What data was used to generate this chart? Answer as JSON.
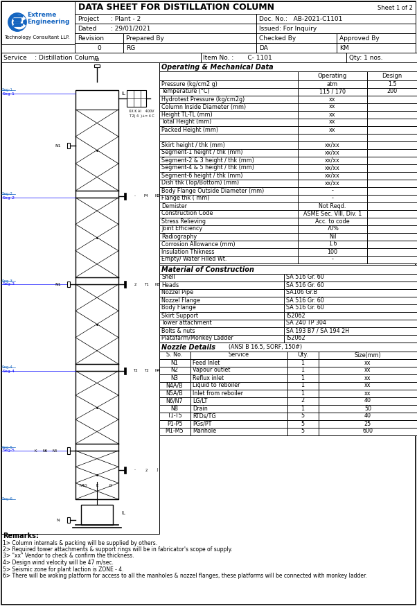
{
  "title": "DATA SHEET FOR DISTILLATION COLUMN",
  "sheet": "Sheet 1 of 2",
  "header": {
    "project": "Plant - 2",
    "doc_no": "AB-2021-C1101",
    "dated": "29/01/2021",
    "issued": "Issued: For Inquiry",
    "revision": "0",
    "prepared_by": "RG",
    "checked_by": "DA",
    "approved_by": "KM"
  },
  "service_line": {
    "service": "Distillation Column",
    "item_no": "C- 1101",
    "qty": "Qty: 1 nos."
  },
  "operating_data_title": "Operating & Mechanical Data",
  "op_col_headers": [
    "",
    "Operating",
    "Design"
  ],
  "op_rows": [
    [
      "Pressure (kg/cm2 g)",
      "atm",
      "1.5"
    ],
    [
      "Temperature (°C)",
      "115 / 170",
      "200"
    ],
    [
      "Hydrotest Pressure (kg/cm2g)",
      "xx",
      ""
    ],
    [
      "Column Inside Diameter (mm)",
      "xx",
      ""
    ],
    [
      "Height TL-TL (mm)",
      "xx",
      ""
    ],
    [
      "Total Height (mm)",
      "xx",
      ""
    ],
    [
      "Packed Height (mm)",
      "xx",
      ""
    ],
    [
      "",
      "",
      ""
    ],
    [
      "Skirt height / thk (mm)",
      "xx/xx",
      ""
    ],
    [
      "Segment-1 height / thk (mm)",
      "xx/xx",
      ""
    ],
    [
      "Segment-2 & 3 height / thk (mm)",
      "xx/xx",
      ""
    ],
    [
      "Segment-4 & 5 height / thk (mm)",
      "xx/xx",
      ""
    ],
    [
      "Segment-6 height / thk (mm)",
      "xx/xx",
      ""
    ],
    [
      "Dish thk (Top/Bottom) (mm)",
      "xx/xx",
      ""
    ],
    [
      "Body Flange Outside Diameter (mm)",
      "-",
      ""
    ],
    [
      "Flange thk ( mm)",
      "-",
      ""
    ],
    [
      "Demister",
      "Not Reqd.",
      ""
    ],
    [
      "Construction Code",
      "ASME Sec. VIII, Div. 1",
      ""
    ],
    [
      "Stress Relieving",
      "Acc. to code",
      ""
    ],
    [
      "Joint Efficiency",
      "70%",
      ""
    ],
    [
      "Radiography",
      "Nil",
      ""
    ],
    [
      "Corrosion Allowance (mm)",
      "1.6",
      ""
    ],
    [
      "Insulation Thikness",
      "100",
      ""
    ],
    [
      "Empty/ Water Filled Wt.",
      "-",
      ""
    ]
  ],
  "mat_title": "Material of Construction",
  "mat_rows": [
    [
      "Shell",
      "SA 516 Gr. 60"
    ],
    [
      "Heads",
      "SA 516 Gr. 60"
    ],
    [
      "Nozzel Pipe",
      "SA106 Gr.B"
    ],
    [
      "Nozzel Flange",
      "SA 516 Gr. 60"
    ],
    [
      "Body Flange",
      "SA 516 Gr. 60"
    ],
    [
      "Skirt Support",
      "IS2062"
    ],
    [
      "Tower attachment",
      "SA 240 TP 304"
    ],
    [
      "Bolts & nuts",
      "SA 193 B7 / SA 194 2H"
    ],
    [
      "Platafarm/Monkey Ladder",
      "IS2062"
    ]
  ],
  "noz_title": "Nozzle Details",
  "noz_standard": "(ANSI B 16.5, SORF, 150#)",
  "noz_headers": [
    "S. No.",
    "Service",
    "Qty.",
    "Size(mm)"
  ],
  "noz_rows": [
    [
      "N1",
      "Feed Inlet",
      "1",
      "xx"
    ],
    [
      "N2",
      "Vapour outlet",
      "1",
      "xx"
    ],
    [
      "N3",
      "Reflux inlet",
      "1",
      "xx"
    ],
    [
      "N4A/B",
      "Liquid to reboiler",
      "1",
      "xx"
    ],
    [
      "N5A/B",
      "Inlet from reboiler",
      "1",
      "xx"
    ],
    [
      "N6/N7",
      "LG/LT",
      "2",
      "40"
    ],
    [
      "N8",
      "Drain",
      "1",
      "50"
    ],
    [
      "T1-T5",
      "RTDs/TG",
      "5",
      "40"
    ],
    [
      "P1-P5",
      "PGs/PT",
      "5",
      "25"
    ],
    [
      "M1-M5",
      "Manhole",
      "5",
      "600"
    ]
  ],
  "remarks": [
    "Remarks:",
    "1> Column internals & packing will be supplied by others.",
    "2> Required tower attachments & support rings will be in fabricator's scope of supply.",
    "3> \"xx\" Vendor to check & confirm the thickness.",
    "4> Design wind velocity will be 47 m/sec.",
    "5> Seismic zone for plant laction is ZONE - 4.",
    "6> There will be woking platform for access to all the manholes & nozzel flanges, these platforms will be connected with monkey ladder."
  ]
}
